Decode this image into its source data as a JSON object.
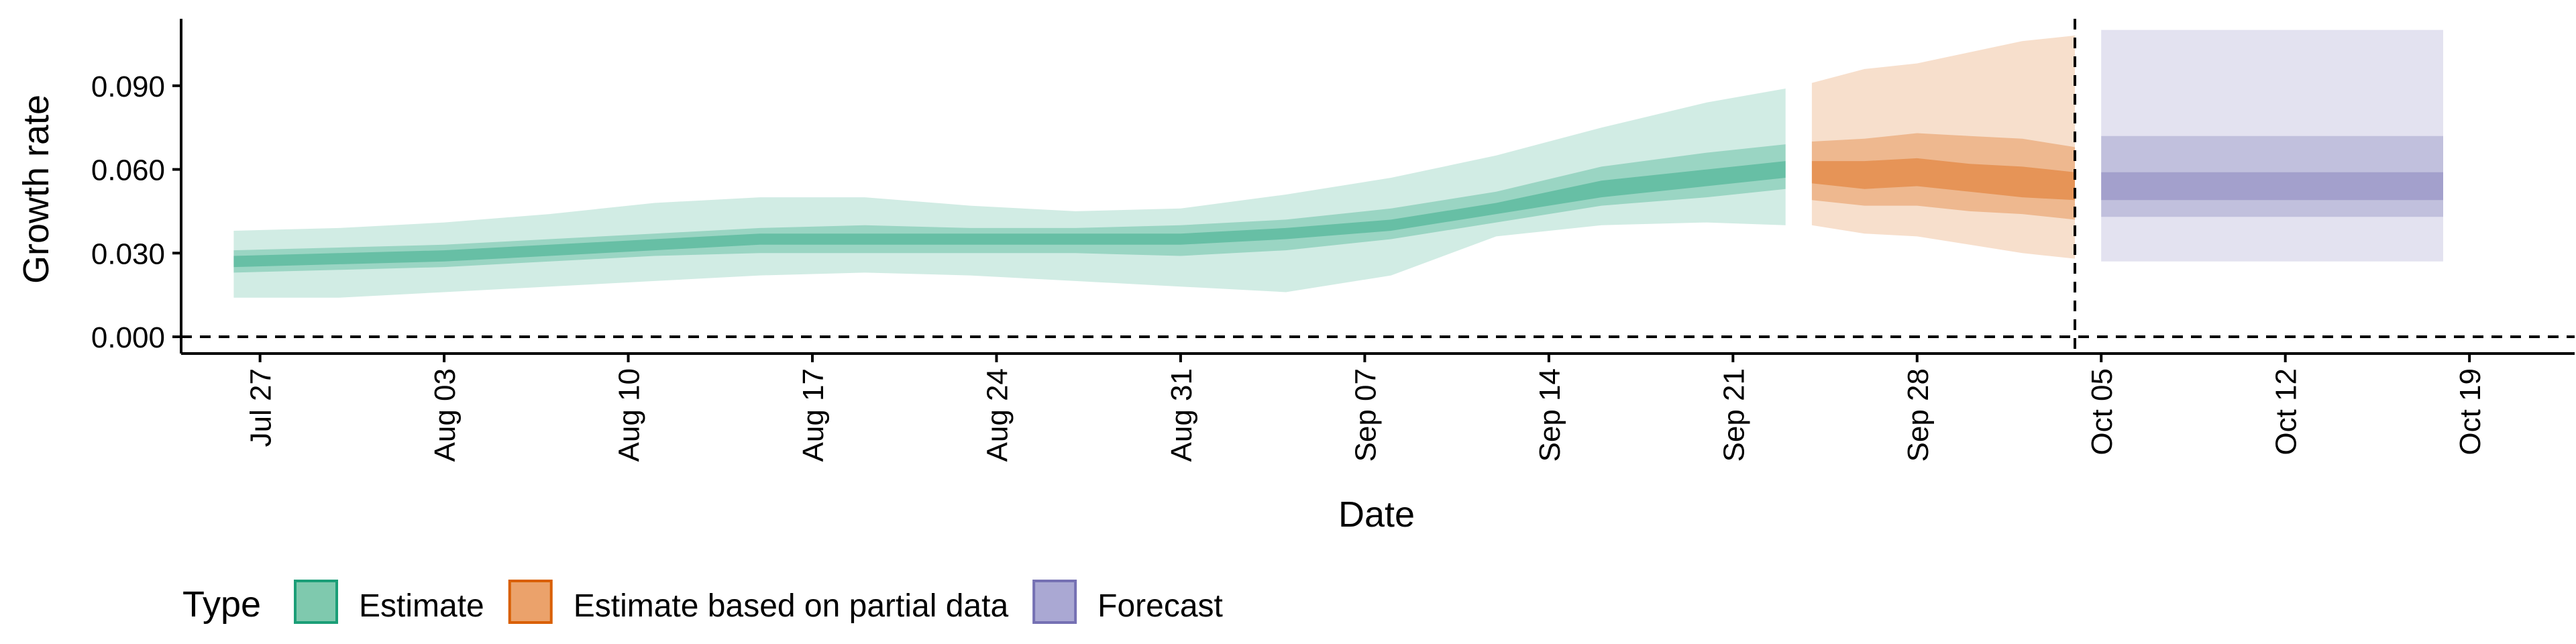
{
  "chart_data": {
    "type": "area",
    "xlabel": "Date",
    "ylabel": "Growth rate",
    "x_range": [
      "2021-07-24",
      "2021-10-23"
    ],
    "ylim": [
      -0.006,
      0.114
    ],
    "x_ticks": [
      {
        "date": "2021-07-27",
        "label": "Jul 27"
      },
      {
        "date": "2021-08-03",
        "label": "Aug 03"
      },
      {
        "date": "2021-08-10",
        "label": "Aug 10"
      },
      {
        "date": "2021-08-17",
        "label": "Aug 17"
      },
      {
        "date": "2021-08-24",
        "label": "Aug 24"
      },
      {
        "date": "2021-08-31",
        "label": "Aug 31"
      },
      {
        "date": "2021-09-07",
        "label": "Sep 07"
      },
      {
        "date": "2021-09-14",
        "label": "Sep 14"
      },
      {
        "date": "2021-09-21",
        "label": "Sep 21"
      },
      {
        "date": "2021-09-28",
        "label": "Sep 28"
      },
      {
        "date": "2021-10-05",
        "label": "Oct 05"
      },
      {
        "date": "2021-10-12",
        "label": "Oct 12"
      },
      {
        "date": "2021-10-19",
        "label": "Oct 19"
      }
    ],
    "y_ticks": [
      {
        "value": 0.0,
        "label": "0.000"
      },
      {
        "value": 0.03,
        "label": "0.030"
      },
      {
        "value": 0.06,
        "label": "0.060"
      },
      {
        "value": 0.09,
        "label": "0.090"
      }
    ],
    "hlines": [
      0
    ],
    "vlines": [
      "2021-10-04"
    ],
    "grid": false,
    "legend": {
      "title": "Type",
      "position": "bottom-left",
      "items": [
        {
          "label": "Estimate",
          "fill": "#7fc9ae",
          "stroke": "#1b9e77"
        },
        {
          "label": "Estimate based on partial data",
          "fill": "#eba26b",
          "stroke": "#d95f02"
        },
        {
          "label": "Forecast",
          "fill": "#aaa8d3",
          "stroke": "#7570b3"
        }
      ]
    },
    "series": [
      {
        "type": "Estimate",
        "color": "#1b9e77",
        "x": [
          "2021-07-26",
          "2021-07-30",
          "2021-08-03",
          "2021-08-07",
          "2021-08-11",
          "2021-08-15",
          "2021-08-19",
          "2021-08-23",
          "2021-08-27",
          "2021-08-31",
          "2021-09-04",
          "2021-09-08",
          "2021-09-12",
          "2021-09-16",
          "2021-09-20",
          "2021-09-23"
        ],
        "median": [
          0.027,
          0.028,
          0.029,
          0.031,
          0.033,
          0.035,
          0.035,
          0.035,
          0.035,
          0.035,
          0.037,
          0.04,
          0.046,
          0.053,
          0.057,
          0.06
        ],
        "lower_20": [
          0.025,
          0.026,
          0.027,
          0.029,
          0.031,
          0.033,
          0.033,
          0.033,
          0.033,
          0.033,
          0.035,
          0.038,
          0.044,
          0.05,
          0.054,
          0.057
        ],
        "upper_20": [
          0.029,
          0.03,
          0.031,
          0.033,
          0.035,
          0.037,
          0.037,
          0.037,
          0.037,
          0.037,
          0.039,
          0.042,
          0.048,
          0.056,
          0.06,
          0.063
        ],
        "lower_50": [
          0.023,
          0.024,
          0.025,
          0.027,
          0.029,
          0.03,
          0.03,
          0.03,
          0.03,
          0.029,
          0.031,
          0.035,
          0.041,
          0.047,
          0.05,
          0.053
        ],
        "upper_50": [
          0.031,
          0.032,
          0.033,
          0.035,
          0.037,
          0.039,
          0.04,
          0.039,
          0.039,
          0.04,
          0.042,
          0.046,
          0.052,
          0.061,
          0.066,
          0.069
        ],
        "lower_90": [
          0.014,
          0.014,
          0.016,
          0.018,
          0.02,
          0.022,
          0.023,
          0.022,
          0.02,
          0.018,
          0.016,
          0.022,
          0.036,
          0.04,
          0.041,
          0.04
        ],
        "upper_90": [
          0.038,
          0.039,
          0.041,
          0.044,
          0.048,
          0.05,
          0.05,
          0.047,
          0.045,
          0.046,
          0.051,
          0.057,
          0.065,
          0.075,
          0.084,
          0.089
        ]
      },
      {
        "type": "Estimate based on partial data",
        "color": "#d95f02",
        "x": [
          "2021-09-24",
          "2021-09-26",
          "2021-09-28",
          "2021-09-30",
          "2021-10-02",
          "2021-10-04"
        ],
        "median": [
          0.059,
          0.058,
          0.059,
          0.057,
          0.056,
          0.054
        ],
        "lower_20": [
          0.055,
          0.053,
          0.054,
          0.052,
          0.05,
          0.049
        ],
        "upper_20": [
          0.063,
          0.063,
          0.064,
          0.062,
          0.061,
          0.059
        ],
        "lower_50": [
          0.049,
          0.047,
          0.047,
          0.045,
          0.044,
          0.042
        ],
        "upper_50": [
          0.07,
          0.071,
          0.073,
          0.072,
          0.071,
          0.068
        ],
        "lower_90": [
          0.04,
          0.037,
          0.036,
          0.033,
          0.03,
          0.028
        ],
        "upper_90": [
          0.091,
          0.096,
          0.098,
          0.102,
          0.106,
          0.108
        ]
      },
      {
        "type": "Forecast",
        "color": "#7570b3",
        "x": [
          "2021-10-05",
          "2021-10-18"
        ],
        "median": [
          0.054,
          0.054
        ],
        "lower_20": [
          0.049,
          0.049
        ],
        "upper_20": [
          0.059,
          0.059
        ],
        "lower_50": [
          0.043,
          0.043
        ],
        "upper_50": [
          0.072,
          0.072
        ],
        "lower_90": [
          0.027,
          0.027
        ],
        "upper_90": [
          0.11,
          0.11
        ]
      }
    ]
  }
}
